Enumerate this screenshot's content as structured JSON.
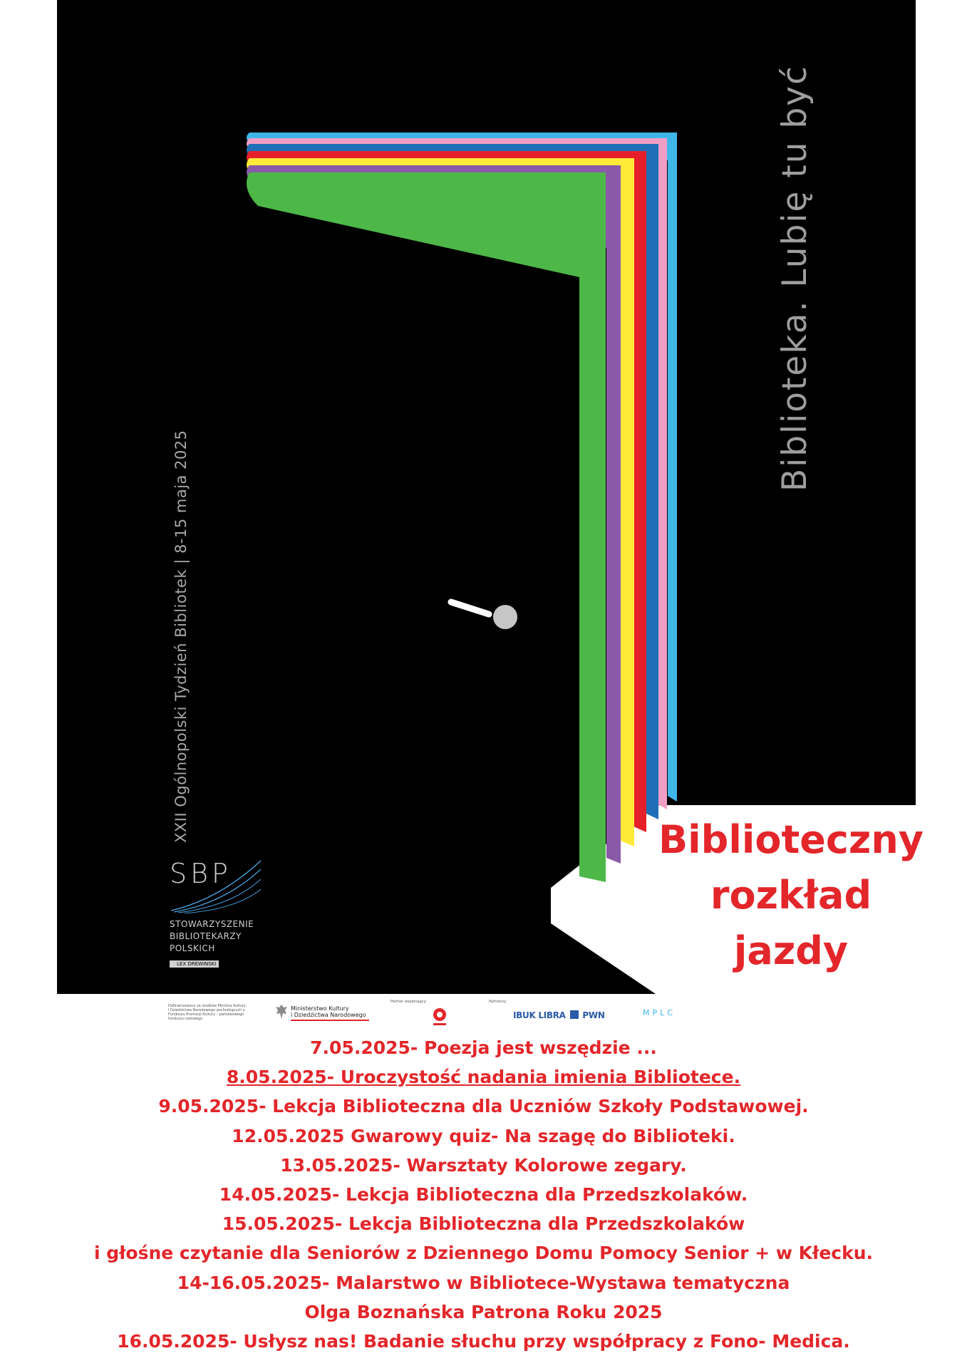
{
  "poster": {
    "slogan": "Biblioteka. Lubię tu być",
    "event_line": "XXII Ogólnopolski Tydzień Bibliotek | 8-15 maja 2025",
    "stripe_colors": [
      "#4db848",
      "#8a5aa8",
      "#ffea3a",
      "#e6202a",
      "#1f6fb8",
      "#f29ec4",
      "#3fb6e8"
    ],
    "background": "#000000",
    "sbp_logo": {
      "letters": "SBP",
      "name_lines": [
        "STOWARZYSZENIE",
        "BIBLIOTEKARZY",
        "POLSKICH"
      ],
      "designer": "LEX DREWINSKI"
    }
  },
  "headline": [
    "Biblioteczny",
    "rozkład",
    "jazdy"
  ],
  "partners": {
    "cofinancing": "Dofinansowano ze środków Ministra Kultury i Dziedzictwa Narodowego pochodzących z Funduszu Promocji Kultury – państwowego funduszu celowego",
    "ministry": [
      "Ministerstwo Kultury",
      "i Dziedzictwa Narodowego"
    ],
    "partner_label": "Partner wspierający:",
    "partners_label": "Partnerzy:",
    "ibuk": "IBUK LIBRA",
    "pwn": "PWN",
    "mplc": "MPLC"
  },
  "schedule": [
    {
      "text": "7.05.2025- Poezja jest wszędzie ...",
      "underline": false
    },
    {
      "text": "8.05.2025- Uroczystość nadania imienia Bibliotece.",
      "underline": true
    },
    {
      "text": "9.05.2025- Lekcja Biblioteczna dla  Uczniów Szkoły Podstawowej.",
      "underline": false
    },
    {
      "text": "12.05.2025 Gwarowy quiz- Na szagę do Biblioteki.",
      "underline": false
    },
    {
      "text": "13.05.2025- Warsztaty Kolorowe zegary.",
      "underline": false
    },
    {
      "text": "14.05.2025- Lekcja Biblioteczna dla Przedszkolaków.",
      "underline": false
    },
    {
      "text": "15.05.2025- Lekcja Biblioteczna dla Przedszkolaków",
      "underline": false
    },
    {
      "text": "i głośne czytanie dla Seniorów z Dziennego Domu Pomocy Senior + w Kłecku.",
      "underline": false
    },
    {
      "text": "14-16.05.2025- Malarstwo w Bibliotece-Wystawa tematyczna",
      "underline": false
    },
    {
      "text": "Olga Boznańska Patrona Roku 2025",
      "underline": false
    },
    {
      "text": "16.05.2025- Usłysz nas! Badanie słuchu przy współpracy z Fono- Medica.",
      "underline": false
    }
  ]
}
